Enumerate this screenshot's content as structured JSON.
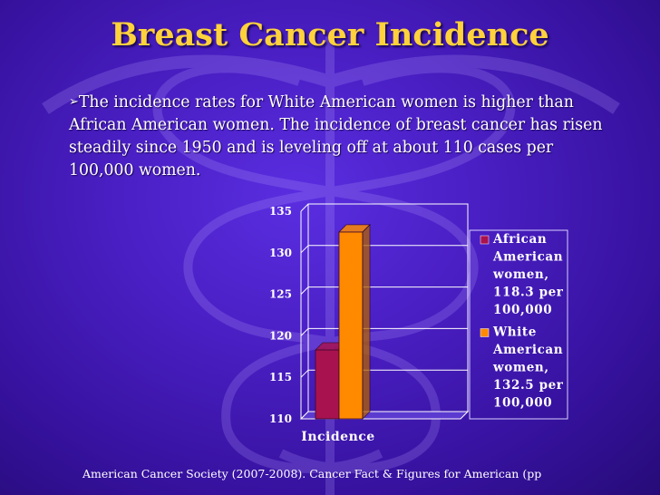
{
  "slide": {
    "title": "Breast Cancer Incidence",
    "bullet_marker": "➢",
    "bullet_text": "The incidence rates for White American women is higher than African American women. The incidence of breast cancer has risen steadily since 1950 and is leveling off at about  110 cases per 100,000 women.",
    "footer": "American Cancer Society (2007-2008).  Cancer Fact & Figures for American (pp",
    "colors": {
      "background": "#4a1fc4",
      "title": "#ffd23c",
      "text": "#ffffff"
    },
    "background_icon": "caduceus-icon"
  },
  "chart_data": {
    "type": "bar",
    "categories": [
      "Incidence"
    ],
    "series": [
      {
        "name": "African American women, 118.3 per 100,000",
        "values": [
          118.3
        ],
        "color": "#a8124f",
        "legend_lines": [
          "African",
          "American",
          "women,",
          "118.3 per",
          "100,000"
        ]
      },
      {
        "name": "White American women, 132.5 per 100,000",
        "values": [
          132.5
        ],
        "color": "#ff8a00",
        "legend_lines": [
          "White",
          "American",
          "women,",
          "132.5 per",
          "100,000"
        ]
      }
    ],
    "ylim": [
      110,
      135
    ],
    "yticks": [
      "110",
      "115",
      "120",
      "125",
      "130",
      "135"
    ],
    "grid": true,
    "legend_position": "right",
    "three_d": true
  }
}
